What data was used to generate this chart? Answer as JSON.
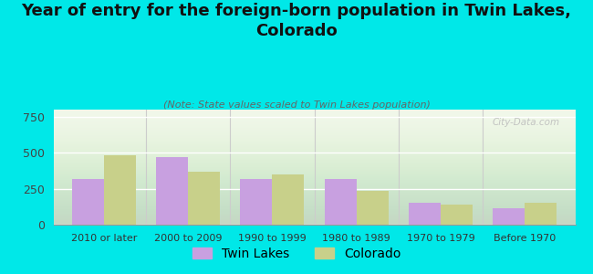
{
  "title": "Year of entry for the foreign-born population in Twin Lakes,\nColorado",
  "subtitle": "(Note: State values scaled to Twin Lakes population)",
  "categories": [
    "2010 or later",
    "2000 to 2009",
    "1990 to 1999",
    "1980 to 1989",
    "1970 to 1979",
    "Before 1970"
  ],
  "twin_lakes": [
    320,
    470,
    315,
    320,
    155,
    115
  ],
  "colorado": [
    485,
    370,
    350,
    235,
    140,
    150
  ],
  "twin_lakes_color": "#c8a0e0",
  "colorado_color": "#c8d08a",
  "background_color": "#00e8e8",
  "ylim": [
    0,
    800
  ],
  "yticks": [
    0,
    250,
    500,
    750
  ],
  "bar_width": 0.38,
  "watermark": "City-Data.com",
  "title_fontsize": 13,
  "subtitle_fontsize": 8,
  "legend_fontsize": 10,
  "tick_fontsize": 8,
  "ytick_fontsize": 9
}
